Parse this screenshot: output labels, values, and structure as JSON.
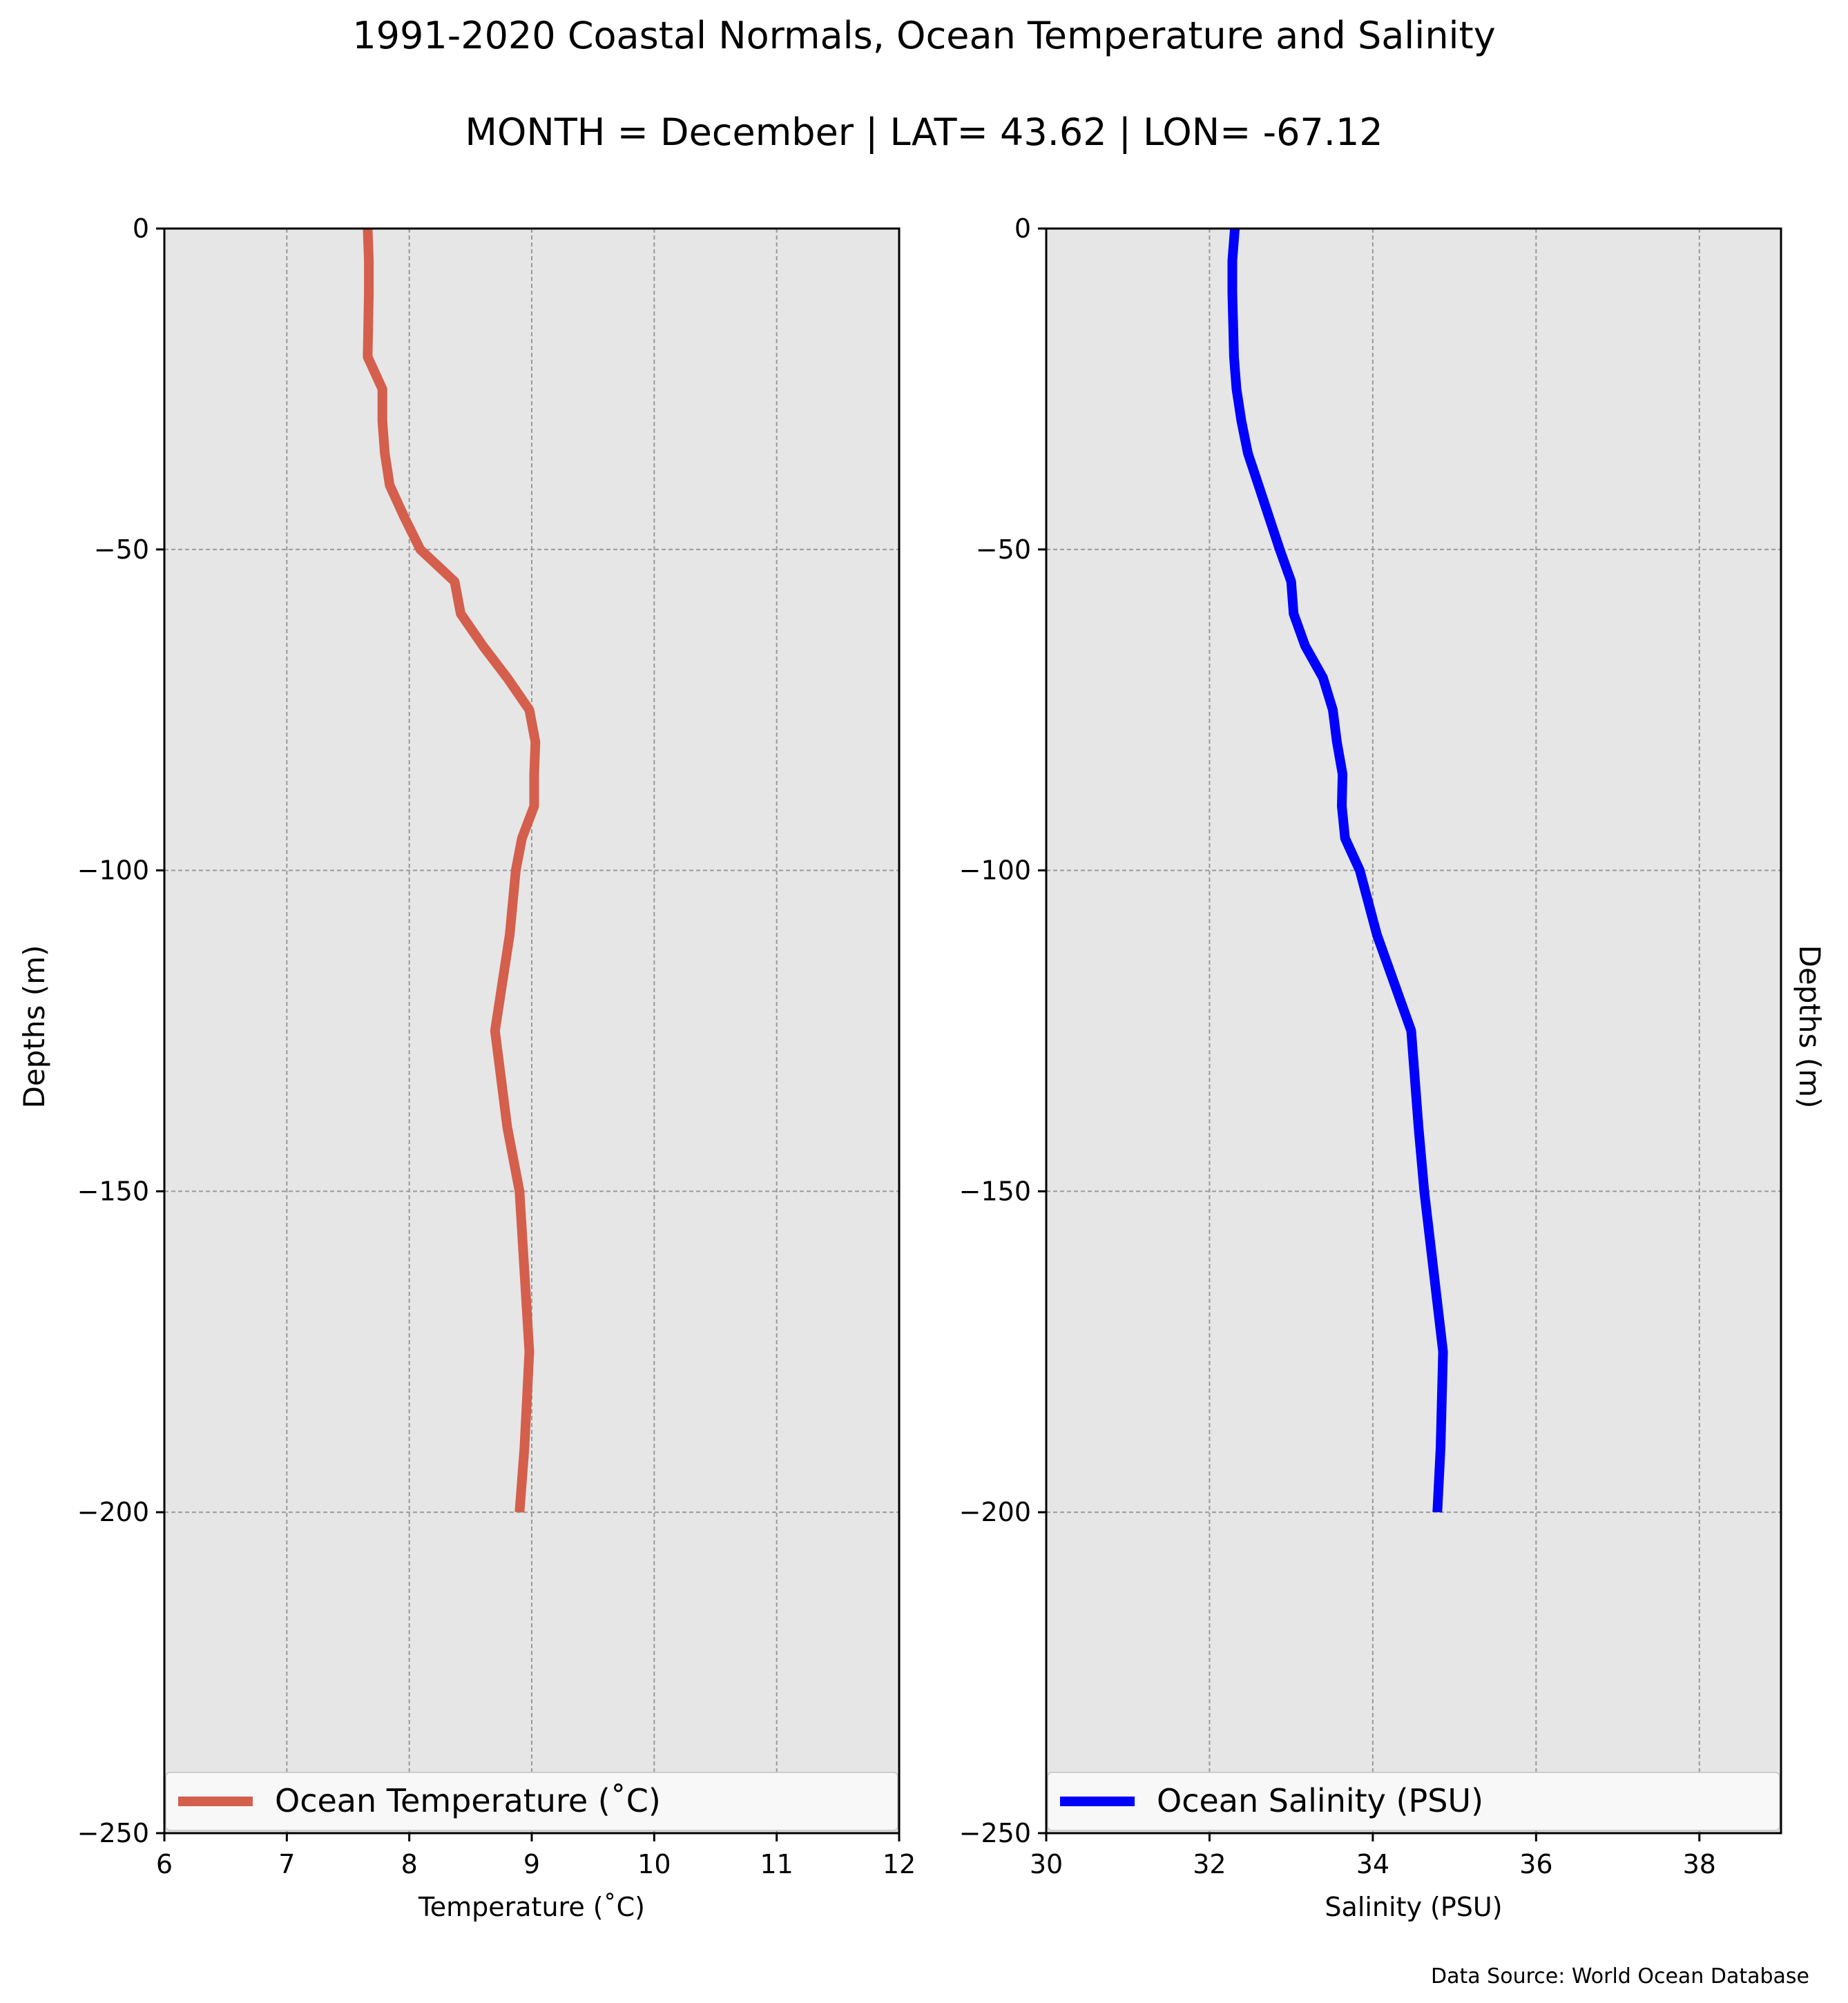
{
  "figure": {
    "title": "1991-2020 Coastal Normals, Ocean Temperature and Salinity",
    "subtitle": "MONTH = December | LAT= 43.62 | LON= -67.12",
    "source": "Data Source: World Ocean Database"
  },
  "colors": {
    "temperature": "#d45f4c",
    "salinity": "#0000ff",
    "panel_bg": "#e6e6e6",
    "grid": "#999999"
  },
  "chart_data": [
    {
      "type": "line",
      "orientation": "vertical-profile",
      "xlabel": "Temperature ($^\\circ$C)",
      "xlabel_display": "Temperature (˚C)",
      "ylabel": "Depths (m)",
      "xlim": [
        6,
        12
      ],
      "ylim": [
        -250,
        0
      ],
      "xticks": [
        6,
        7,
        8,
        9,
        10,
        11,
        12
      ],
      "xtick_labels": [
        "6",
        "7",
        "8",
        "9",
        "10",
        "11",
        "12"
      ],
      "yticks": [
        0,
        -50,
        -100,
        -150,
        -200,
        -250
      ],
      "ytick_labels": [
        "0",
        "−50",
        "−100",
        "−150",
        "−200",
        "−250"
      ],
      "grid": true,
      "legend_position": "bottom",
      "series": [
        {
          "name": "Ocean Temperature (˚C)",
          "color": "#d45f4c",
          "x": [
            7.66,
            7.67,
            7.67,
            7.66,
            7.78,
            7.78,
            7.8,
            7.84,
            7.96,
            8.09,
            8.37,
            8.42,
            8.6,
            8.8,
            8.98,
            9.03,
            9.02,
            9.02,
            8.92,
            8.87,
            8.82,
            8.7,
            8.8,
            8.9,
            8.98,
            8.94,
            8.9
          ],
          "y": [
            0,
            -5,
            -10,
            -20,
            -25,
            -30,
            -35,
            -40,
            -45,
            -50,
            -55,
            -60,
            -65,
            -70,
            -75,
            -80,
            -85,
            -90,
            -95,
            -100,
            -110,
            -125,
            -140,
            -150,
            -175,
            -190,
            -200
          ]
        }
      ]
    },
    {
      "type": "line",
      "orientation": "vertical-profile",
      "xlabel": "Salinity (PSU)",
      "ylabel": "Depths (m)",
      "xlim": [
        30,
        39
      ],
      "ylim": [
        -250,
        0
      ],
      "xticks": [
        30,
        32,
        34,
        36,
        38
      ],
      "xtick_labels": [
        "30",
        "32",
        "34",
        "36",
        "38"
      ],
      "yticks": [
        0,
        -50,
        -100,
        -150,
        -200,
        -250
      ],
      "ytick_labels": [
        "0",
        "−50",
        "−100",
        "−150",
        "−200",
        "−250"
      ],
      "grid": true,
      "legend_position": "bottom",
      "series": [
        {
          "name": "Ocean Salinity (PSU)",
          "color": "#0000ff",
          "x": [
            32.31,
            32.28,
            32.28,
            32.3,
            32.33,
            32.39,
            32.47,
            32.6,
            32.73,
            32.86,
            33.0,
            33.03,
            33.17,
            33.39,
            33.51,
            33.56,
            33.63,
            33.62,
            33.66,
            33.84,
            34.05,
            34.47,
            34.56,
            34.63,
            34.86,
            34.83,
            34.79
          ],
          "y": [
            0,
            -5,
            -10,
            -20,
            -25,
            -30,
            -35,
            -40,
            -45,
            -50,
            -55,
            -60,
            -65,
            -70,
            -75,
            -80,
            -85,
            -90,
            -95,
            -100,
            -110,
            -125,
            -140,
            -150,
            -175,
            -190,
            -200
          ]
        }
      ]
    }
  ]
}
